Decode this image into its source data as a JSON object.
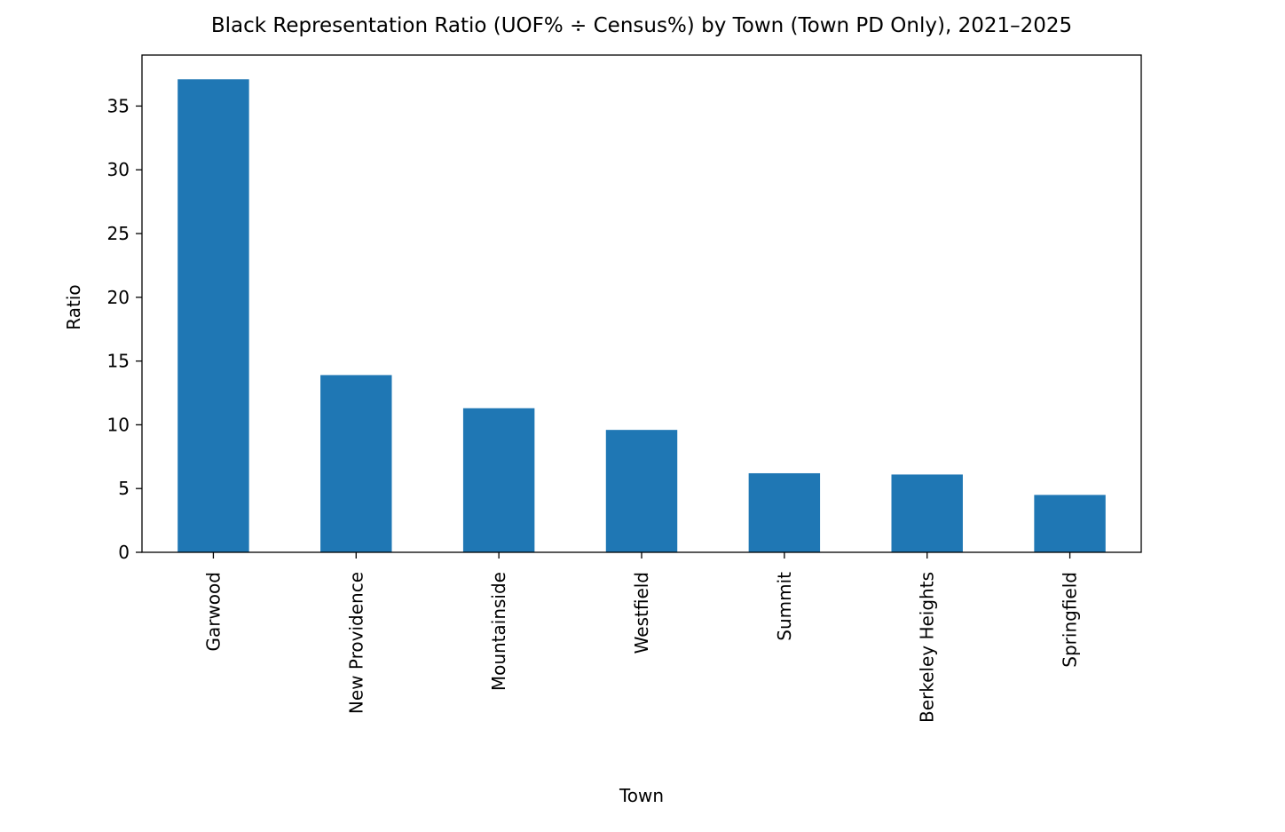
{
  "chart_data": {
    "type": "bar",
    "title": "Black Representation Ratio (UOF% ÷ Census%) by Town (Town PD Only), 2021–2025",
    "x_label": "Town",
    "y_label": "Ratio",
    "categories": [
      "Garwood",
      "New Providence",
      "Mountainside",
      "Westfield",
      "Summit",
      "Berkeley Heights",
      "Springfield"
    ],
    "values": [
      37.1,
      13.9,
      11.3,
      9.6,
      6.2,
      6.1,
      4.5
    ],
    "color": "#1f77b4",
    "ylim": [
      0,
      39
    ],
    "yticks": [
      0,
      5,
      10,
      15,
      20,
      25,
      30,
      35
    ],
    "grid": false
  }
}
